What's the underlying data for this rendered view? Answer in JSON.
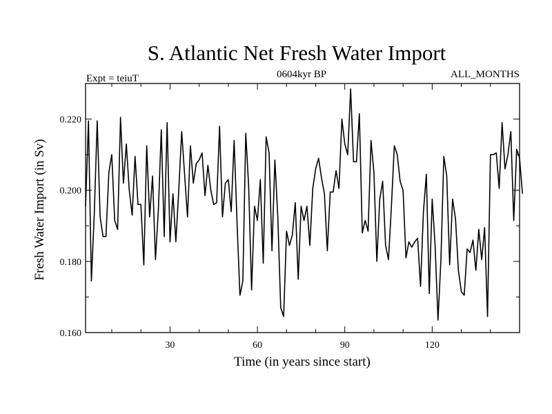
{
  "chart_data": {
    "type": "line",
    "title": "S. Atlantic Net Fresh Water Import",
    "subtitle_left": "Expt = teiuT",
    "subtitle_center": "0604kyr BP",
    "subtitle_right": "ALL_MONTHS",
    "xlabel": "Time (in years since start)",
    "ylabel": "Fresh Water Import (in Sv)",
    "xlim": [
      1,
      150
    ],
    "ylim": [
      0.16,
      0.23
    ],
    "xticks": [
      30,
      60,
      90,
      120
    ],
    "xtick_labels": [
      "30",
      "60",
      "90",
      "120"
    ],
    "yticks": [
      0.16,
      0.18,
      0.2,
      0.22
    ],
    "ytick_labels": [
      "0.160",
      "0.180",
      "0.200",
      "0.220"
    ],
    "series": [
      {
        "name": "Fresh Water Import",
        "x_start": 1,
        "x_step": 1,
        "values": [
          0.1955,
          0.2195,
          0.1745,
          0.1935,
          0.2195,
          0.1925,
          0.187,
          0.187,
          0.205,
          0.21,
          0.1915,
          0.189,
          0.2205,
          0.202,
          0.213,
          0.2,
          0.193,
          0.2095,
          0.196,
          0.196,
          0.179,
          0.2125,
          0.1925,
          0.204,
          0.1805,
          0.1945,
          0.217,
          0.187,
          0.219,
          0.1855,
          0.199,
          0.1855,
          0.2,
          0.2165,
          0.2045,
          0.1925,
          0.2125,
          0.202,
          0.2075,
          0.2085,
          0.2105,
          0.1985,
          0.207,
          0.2,
          0.196,
          0.1965,
          0.218,
          0.1925,
          0.202,
          0.203,
          0.194,
          0.214,
          0.191,
          0.1705,
          0.1745,
          0.216,
          0.201,
          0.172,
          0.1955,
          0.1915,
          0.203,
          0.1795,
          0.215,
          0.2105,
          0.183,
          0.2085,
          0.1925,
          0.167,
          0.1645,
          0.1885,
          0.1845,
          0.1875,
          0.1965,
          0.175,
          0.1955,
          0.1915,
          0.1955,
          0.1845,
          0.2005,
          0.206,
          0.209,
          0.2035,
          0.199,
          0.183,
          0.1995,
          0.1995,
          0.2055,
          0.2005,
          0.22,
          0.213,
          0.21,
          0.2285,
          0.208,
          0.208,
          0.2215,
          0.188,
          0.1915,
          0.1885,
          0.214,
          0.205,
          0.18,
          0.1975,
          0.2025,
          0.1845,
          0.1805,
          0.1955,
          0.2125,
          0.21,
          0.2025,
          0.2,
          0.181,
          0.1855,
          0.184,
          0.1855,
          0.1865,
          0.173,
          0.194,
          0.2045,
          0.171,
          0.1975,
          0.1845,
          0.1635,
          0.1805,
          0.2095,
          0.204,
          0.179,
          0.1975,
          0.192,
          0.1775,
          0.1715,
          0.1705,
          0.1835,
          0.1825,
          0.186,
          0.1775,
          0.189,
          0.1805,
          0.1895,
          0.1645,
          0.21,
          0.21,
          0.2105,
          0.2005,
          0.219,
          0.206,
          0.21,
          0.2165,
          0.1915,
          0.2115,
          0.209,
          0.199
        ]
      }
    ]
  }
}
